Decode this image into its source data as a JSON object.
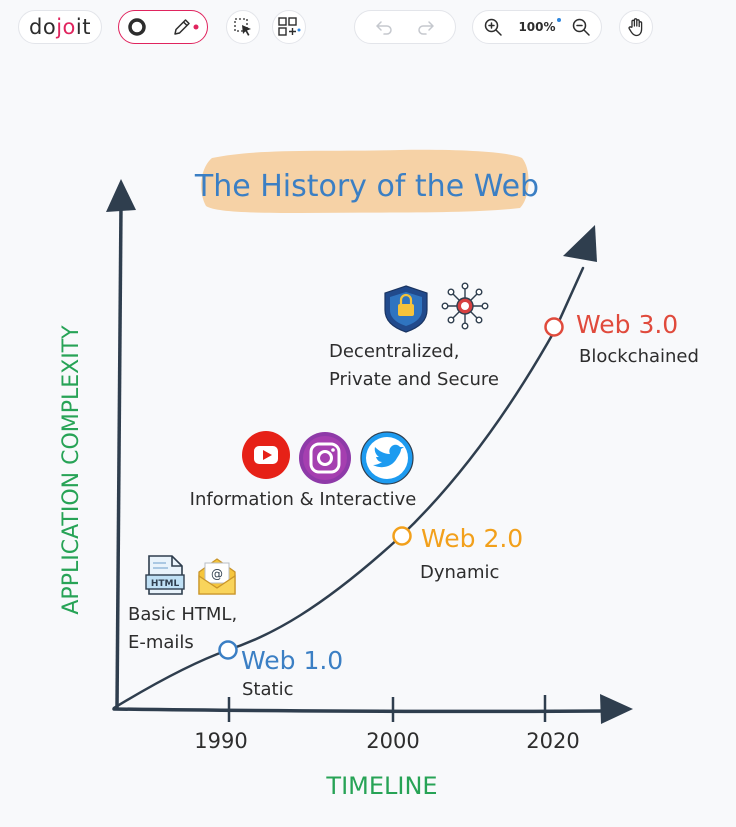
{
  "toolbar": {
    "logo_prefix": "do",
    "logo_mid": "jo",
    "logo_suffix": "it",
    "zoom_level": "100%"
  },
  "diagram": {
    "title": "The History of the Web",
    "y_axis_label": "APPLICATION COMPLEXITY",
    "x_axis_label": "TIMELINE",
    "ticks": [
      "1990",
      "2000",
      "2020"
    ],
    "milestones": [
      {
        "name": "Web 1.0",
        "sub": "Static",
        "color": "#3b7fc4"
      },
      {
        "name": "Web 2.0",
        "sub": "Dynamic",
        "color": "#f2a01b"
      },
      {
        "name": "Web 3.0",
        "sub": "Blockchained",
        "color": "#e04a3c"
      }
    ],
    "notes": {
      "web1_line1": "Basic HTML,",
      "web1_line2": "E-mails",
      "web2": "Information & Interactive",
      "web3_line1": "Decentralized,",
      "web3_line2": "Private and Secure",
      "html_badge": "HTML",
      "email_glyph": "@"
    }
  },
  "colors": {
    "axis": "#2f3e4e",
    "label_green": "#27a356",
    "title_blue": "#3b7fc4",
    "title_bg": "#f6d2a6",
    "accent_pink": "#e0245e"
  }
}
